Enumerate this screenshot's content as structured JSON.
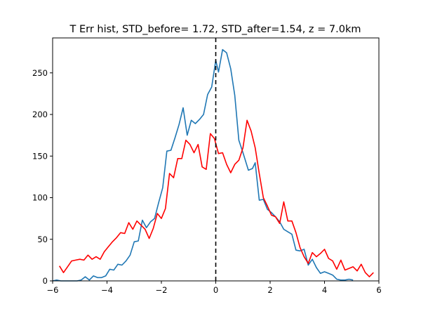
{
  "chart_data": {
    "type": "line",
    "title": "T Err hist, STD_before= 1.72, STD_after=1.54, z = 7.0km",
    "xlabel": "",
    "ylabel": "",
    "xlim": [
      -6,
      6
    ],
    "ylim": [
      0,
      292
    ],
    "xticks": [
      -6,
      -4,
      -2,
      0,
      2,
      4,
      6
    ],
    "yticks": [
      0,
      50,
      100,
      150,
      200,
      250
    ],
    "grid": false,
    "legend": "none",
    "vline": {
      "x": 0,
      "style": "dashed",
      "color": "#000000"
    },
    "series": [
      {
        "color": "#1f77b4",
        "points": [
          [
            -6.0,
            0
          ],
          [
            -5.85,
            1
          ],
          [
            -5.7,
            0
          ],
          [
            -5.55,
            0
          ],
          [
            -5.4,
            0
          ],
          [
            -5.25,
            0
          ],
          [
            -5.1,
            0
          ],
          [
            -4.95,
            1
          ],
          [
            -4.8,
            5
          ],
          [
            -4.65,
            1
          ],
          [
            -4.5,
            6
          ],
          [
            -4.35,
            4
          ],
          [
            -4.2,
            4
          ],
          [
            -4.05,
            6
          ],
          [
            -3.9,
            14
          ],
          [
            -3.75,
            13
          ],
          [
            -3.6,
            20
          ],
          [
            -3.45,
            19
          ],
          [
            -3.3,
            24
          ],
          [
            -3.15,
            31
          ],
          [
            -3.0,
            47
          ],
          [
            -2.85,
            48
          ],
          [
            -2.7,
            73
          ],
          [
            -2.55,
            64
          ],
          [
            -2.4,
            71
          ],
          [
            -2.25,
            75
          ],
          [
            -2.1,
            94
          ],
          [
            -1.95,
            112
          ],
          [
            -1.8,
            156
          ],
          [
            -1.65,
            157
          ],
          [
            -1.5,
            172
          ],
          [
            -1.35,
            188
          ],
          [
            -1.2,
            208
          ],
          [
            -1.05,
            175
          ],
          [
            -0.9,
            193
          ],
          [
            -0.75,
            189
          ],
          [
            -0.6,
            194
          ],
          [
            -0.45,
            200
          ],
          [
            -0.3,
            224
          ],
          [
            -0.15,
            233
          ],
          [
            0.0,
            265
          ],
          [
            0.1,
            251
          ],
          [
            0.25,
            278
          ],
          [
            0.4,
            274
          ],
          [
            0.55,
            255
          ],
          [
            0.7,
            223
          ],
          [
            0.85,
            169
          ],
          [
            1.0,
            154
          ],
          [
            1.2,
            133
          ],
          [
            1.35,
            135
          ],
          [
            1.45,
            142
          ],
          [
            1.6,
            97
          ],
          [
            1.75,
            98
          ],
          [
            1.9,
            86
          ],
          [
            2.05,
            82
          ],
          [
            2.2,
            77
          ],
          [
            2.35,
            71
          ],
          [
            2.5,
            62
          ],
          [
            2.65,
            59
          ],
          [
            2.8,
            56
          ],
          [
            2.95,
            37
          ],
          [
            3.1,
            36
          ],
          [
            3.25,
            38
          ],
          [
            3.4,
            19
          ],
          [
            3.55,
            26
          ],
          [
            3.7,
            16
          ],
          [
            3.85,
            9
          ],
          [
            4.0,
            11
          ],
          [
            4.15,
            9
          ],
          [
            4.3,
            7
          ],
          [
            4.45,
            2
          ],
          [
            4.6,
            1
          ],
          [
            4.75,
            1
          ],
          [
            4.9,
            2
          ],
          [
            5.05,
            1
          ]
        ]
      },
      {
        "color": "#ff0000",
        "points": [
          [
            -5.75,
            18
          ],
          [
            -5.6,
            10
          ],
          [
            -5.45,
            17
          ],
          [
            -5.3,
            24
          ],
          [
            -5.15,
            25
          ],
          [
            -5.0,
            26
          ],
          [
            -4.85,
            25
          ],
          [
            -4.7,
            31
          ],
          [
            -4.55,
            26
          ],
          [
            -4.4,
            29
          ],
          [
            -4.25,
            26
          ],
          [
            -4.1,
            35
          ],
          [
            -3.95,
            41
          ],
          [
            -3.8,
            47
          ],
          [
            -3.65,
            52
          ],
          [
            -3.5,
            58
          ],
          [
            -3.35,
            57
          ],
          [
            -3.2,
            70
          ],
          [
            -3.05,
            62
          ],
          [
            -2.9,
            72
          ],
          [
            -2.75,
            67
          ],
          [
            -2.6,
            62
          ],
          [
            -2.45,
            51
          ],
          [
            -2.3,
            63
          ],
          [
            -2.15,
            81
          ],
          [
            -2.0,
            75
          ],
          [
            -1.85,
            87
          ],
          [
            -1.7,
            129
          ],
          [
            -1.55,
            124
          ],
          [
            -1.4,
            147
          ],
          [
            -1.25,
            147
          ],
          [
            -1.1,
            169
          ],
          [
            -0.95,
            164
          ],
          [
            -0.8,
            154
          ],
          [
            -0.65,
            164
          ],
          [
            -0.5,
            137
          ],
          [
            -0.35,
            134
          ],
          [
            -0.2,
            177
          ],
          [
            -0.05,
            171
          ],
          [
            0.1,
            153
          ],
          [
            0.25,
            154
          ],
          [
            0.4,
            140
          ],
          [
            0.55,
            130
          ],
          [
            0.7,
            140
          ],
          [
            0.85,
            145
          ],
          [
            1.0,
            160
          ],
          [
            1.15,
            193
          ],
          [
            1.3,
            180
          ],
          [
            1.45,
            160
          ],
          [
            1.6,
            129
          ],
          [
            1.75,
            100
          ],
          [
            1.9,
            90
          ],
          [
            2.05,
            79
          ],
          [
            2.2,
            77
          ],
          [
            2.35,
            69
          ],
          [
            2.5,
            95
          ],
          [
            2.65,
            72
          ],
          [
            2.8,
            72
          ],
          [
            2.95,
            58
          ],
          [
            3.1,
            40
          ],
          [
            3.25,
            29
          ],
          [
            3.4,
            21
          ],
          [
            3.55,
            34
          ],
          [
            3.7,
            29
          ],
          [
            3.85,
            33
          ],
          [
            4.0,
            38
          ],
          [
            4.15,
            27
          ],
          [
            4.3,
            24
          ],
          [
            4.45,
            14
          ],
          [
            4.6,
            25
          ],
          [
            4.75,
            13
          ],
          [
            4.9,
            15
          ],
          [
            5.05,
            17
          ],
          [
            5.2,
            12
          ],
          [
            5.35,
            20
          ],
          [
            5.5,
            10
          ],
          [
            5.65,
            5
          ],
          [
            5.8,
            10
          ]
        ]
      }
    ]
  }
}
